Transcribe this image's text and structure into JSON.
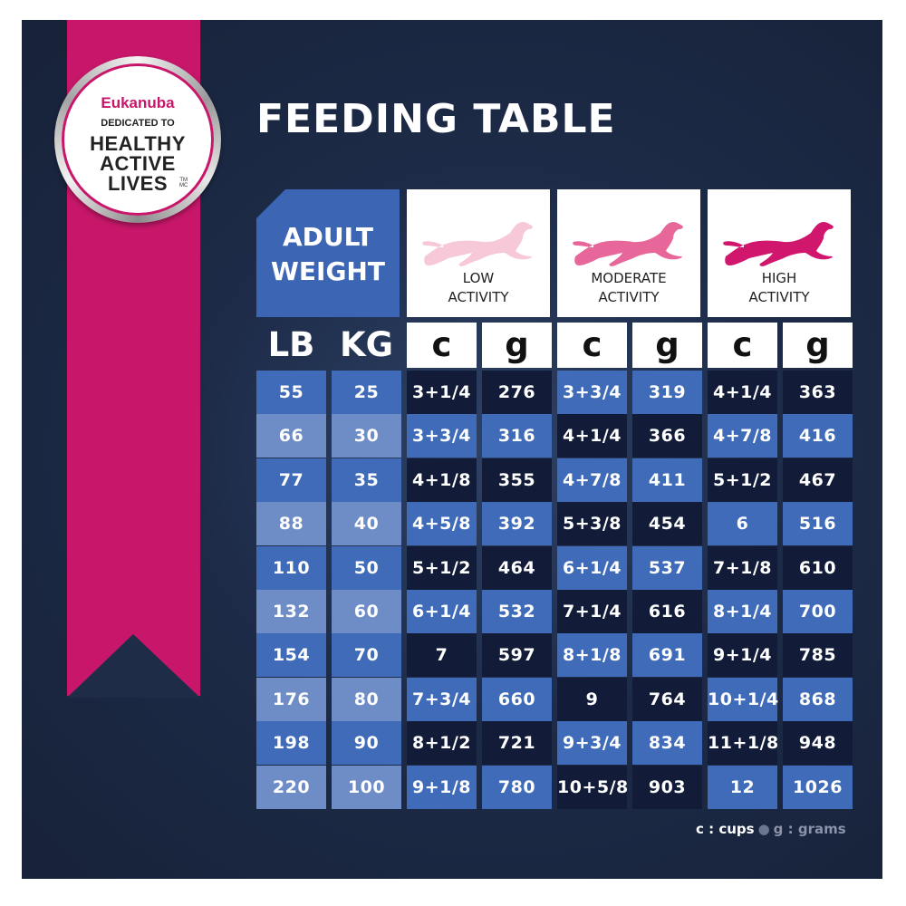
{
  "colors": {
    "ribbon": "#c8176a",
    "panel": "#1d2b48",
    "header_blue": "#3c66b4",
    "low_dog": "#f6c8d8",
    "moderate_dog": "#e8679a",
    "high_dog": "#d0176d"
  },
  "badge": {
    "brand": "Eukanuba",
    "dedicated": "DEDICATED TO",
    "line1": "HEALTHY",
    "line2": "ACTIVE",
    "line3": "LIVES",
    "tm": "TM\nMC"
  },
  "title": "FEEDING TABLE",
  "header": {
    "adult_weight": "ADULT\nWEIGHT",
    "activities": [
      {
        "label": "LOW\nACTIVITY",
        "icon": "running-dog-icon",
        "color": "#f6c8d8"
      },
      {
        "label": "MODERATE\nACTIVITY",
        "icon": "running-dog-icon",
        "color": "#e8679a"
      },
      {
        "label": "HIGH\nACTIVITY",
        "icon": "running-dog-icon",
        "color": "#d0176d"
      }
    ]
  },
  "units": [
    "LB",
    "KG",
    "c",
    "g",
    "c",
    "g",
    "c",
    "g"
  ],
  "rows": [
    [
      "55",
      "25",
      "3+1/4",
      "276",
      "3+3/4",
      "319",
      "4+1/4",
      "363"
    ],
    [
      "66",
      "30",
      "3+3/4",
      "316",
      "4+1/4",
      "366",
      "4+7/8",
      "416"
    ],
    [
      "77",
      "35",
      "4+1/8",
      "355",
      "4+7/8",
      "411",
      "5+1/2",
      "467"
    ],
    [
      "88",
      "40",
      "4+5/8",
      "392",
      "5+3/8",
      "454",
      "6",
      "516"
    ],
    [
      "110",
      "50",
      "5+1/2",
      "464",
      "6+1/4",
      "537",
      "7+1/8",
      "610"
    ],
    [
      "132",
      "60",
      "6+1/4",
      "532",
      "7+1/4",
      "616",
      "8+1/4",
      "700"
    ],
    [
      "154",
      "70",
      "7",
      "597",
      "8+1/8",
      "691",
      "9+1/4",
      "785"
    ],
    [
      "176",
      "80",
      "7+3/4",
      "660",
      "9",
      "764",
      "10+1/4",
      "868"
    ],
    [
      "198",
      "90",
      "8+1/2",
      "721",
      "9+3/4",
      "834",
      "11+1/8",
      "948"
    ],
    [
      "220",
      "100",
      "9+1/8",
      "780",
      "10+5/8",
      "903",
      "12",
      "1026"
    ]
  ],
  "legend": {
    "cups": "c : cups",
    "grams": "g : grams"
  }
}
